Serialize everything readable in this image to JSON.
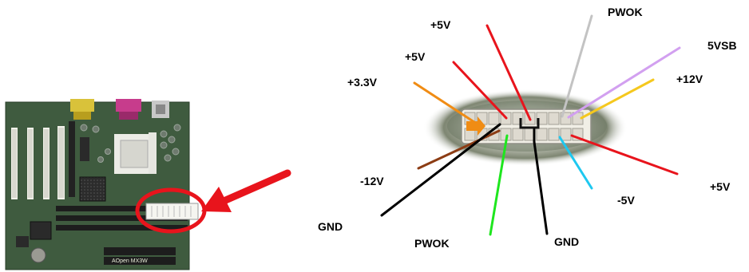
{
  "motherboard": {
    "brand": "AOpen",
    "model": "MX3W"
  },
  "colors": {
    "red": "#e8141c",
    "orange": "#f08c14",
    "brown": "#8c3c14",
    "black": "#000000",
    "green": "#1ee61e",
    "gray": "#c3c3c3",
    "purple": "#d2a0f0",
    "yellow": "#f5c81e",
    "cyan": "#1ec8f0",
    "board": "#3f5b3f",
    "highlight": "#e8141c"
  },
  "wire_labels": {
    "pwok_top": "PWOK",
    "plus5v_a": "+5V",
    "plus5v_b": "+5V",
    "plus5vsb": "5VSB",
    "plus12v": "+12V",
    "plus3v3": "+3.3V",
    "minus12v": "-12V",
    "plus5v_right": "+5V",
    "minus5v": "-5V",
    "gnd_left": "GND",
    "pwok_bottom": "PWOK",
    "gnd_right": "GND"
  }
}
